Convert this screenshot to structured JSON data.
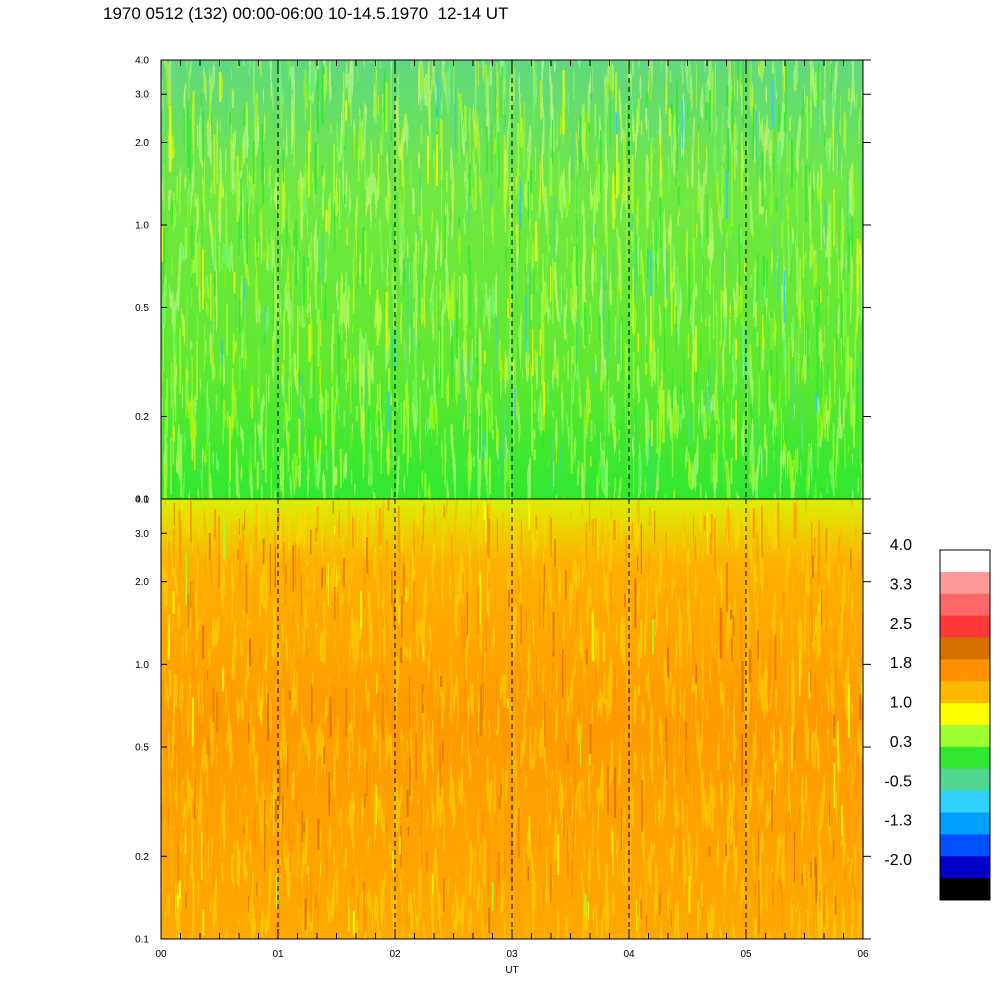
{
  "title": "1970 0512 (132) 00:00-06:00 10-14.5.1970  12-14 UT",
  "chart_data": [
    {
      "type": "heatmap",
      "panel": "top",
      "x_label": "",
      "x_range": [
        0,
        6
      ],
      "y_scale": "log",
      "y_range": [
        0.1,
        4.0
      ],
      "y_tick_labels": [
        "4.0",
        "3.0",
        "2.0",
        "1.0",
        "0.5",
        "0.2",
        "0.1"
      ],
      "y_ticks": [
        4.0,
        3.0,
        2.0,
        1.0,
        0.5,
        0.2,
        0.1
      ],
      "dominant_level_range": [
        0.0,
        1.0
      ],
      "note_levels": "mostly green (0.3) with light-green/yellow patches; bluish streaks near top"
    },
    {
      "type": "heatmap",
      "panel": "bottom",
      "x_label": "UT",
      "x_range": [
        0,
        6
      ],
      "x_tick_labels": [
        "00",
        "01",
        "02",
        "03",
        "04",
        "05",
        "06"
      ],
      "y_scale": "log",
      "y_range": [
        0.1,
        4.0
      ],
      "y_tick_labels": [
        "4.0",
        "3.0",
        "2.0",
        "1.0",
        "0.5",
        "0.2",
        "0.1"
      ],
      "y_ticks": [
        4.0,
        3.0,
        2.0,
        1.0,
        0.5,
        0.2,
        0.1
      ],
      "dominant_level_range": [
        1.0,
        2.5
      ],
      "note_levels": "mostly orange/amber (1.8) with yellow near top and dark orange patches"
    }
  ],
  "hour_markers": [
    1,
    2,
    3,
    4,
    5
  ],
  "colorbar": {
    "labels": [
      "4.0",
      "3.3",
      "2.5",
      "1.8",
      "1.0",
      "0.3",
      "-0.5",
      "-1.3",
      "-2.0"
    ],
    "colors_top_to_bottom": [
      "#ffffff",
      "#ff9a9a",
      "#ff6868",
      "#ff3838",
      "#d87000",
      "#ff9000",
      "#ffb800",
      "#ffff00",
      "#a0ff30",
      "#30e830",
      "#50d890",
      "#30d0ff",
      "#00a0ff",
      "#0050ff",
      "#0000c8",
      "#000000"
    ]
  }
}
